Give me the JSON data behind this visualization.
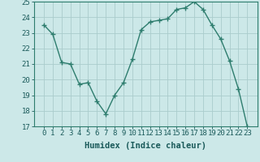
{
  "x": [
    0,
    1,
    2,
    3,
    4,
    5,
    6,
    7,
    8,
    9,
    10,
    11,
    12,
    13,
    14,
    15,
    16,
    17,
    18,
    19,
    20,
    21,
    22,
    23
  ],
  "y": [
    23.5,
    22.9,
    21.1,
    21.0,
    19.7,
    19.8,
    18.6,
    17.8,
    19.0,
    19.8,
    21.3,
    23.2,
    23.7,
    23.8,
    23.9,
    24.5,
    24.6,
    25.0,
    24.5,
    23.5,
    22.6,
    21.2,
    19.4,
    17.0
  ],
  "line_color": "#2e7d6e",
  "marker": "+",
  "markersize": 4,
  "bg_color": "#cce8e8",
  "grid_color": "#aacccc",
  "xlabel": "Humidex (Indice chaleur)",
  "ylim": [
    17,
    25
  ],
  "yticks": [
    17,
    18,
    19,
    20,
    21,
    22,
    23,
    24,
    25
  ],
  "xticks": [
    0,
    1,
    2,
    3,
    4,
    5,
    6,
    7,
    8,
    9,
    10,
    11,
    12,
    13,
    14,
    15,
    16,
    17,
    18,
    19,
    20,
    21,
    22,
    23
  ],
  "xlabel_fontsize": 7.5,
  "tick_fontsize": 6.5,
  "linewidth": 1.0
}
